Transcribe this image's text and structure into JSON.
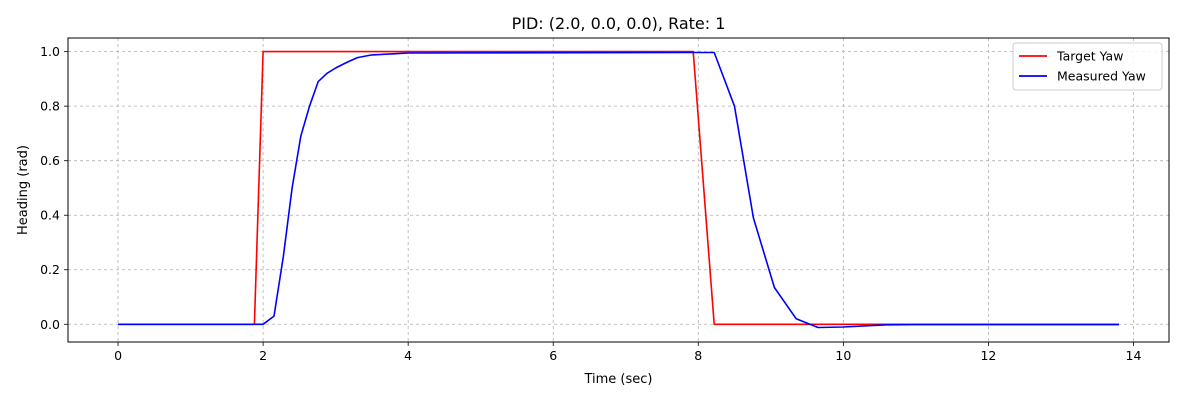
{
  "chart_data": {
    "type": "line",
    "title": "PID: (2.0, 0.0, 0.0), Rate: 1",
    "xlabel": "Time (sec)",
    "ylabel": "Heading (rad)",
    "xlim": [
      -0.69,
      14.49
    ],
    "ylim": [
      -0.065,
      1.05
    ],
    "xticks": [
      0,
      2,
      4,
      6,
      8,
      10,
      12,
      14
    ],
    "yticks": [
      0.0,
      0.2,
      0.4,
      0.6,
      0.8,
      1.0
    ],
    "xtick_labels": [
      "0",
      "2",
      "4",
      "6",
      "8",
      "10",
      "12",
      "14"
    ],
    "ytick_labels": [
      "0.0",
      "0.2",
      "0.4",
      "0.6",
      "0.8",
      "1.0"
    ],
    "grid": true,
    "legend_position": "top-right",
    "series": [
      {
        "name": "Target Yaw",
        "color": "#ff0000",
        "x": [
          0,
          1.88,
          2.0,
          7.93,
          8.22,
          13.8
        ],
        "y": [
          0,
          0,
          1.0,
          1.0,
          0,
          0
        ]
      },
      {
        "name": "Measured Yaw",
        "color": "#0000ff",
        "x": [
          0,
          2.0,
          2.15,
          2.28,
          2.4,
          2.52,
          2.64,
          2.76,
          2.88,
          3.0,
          3.15,
          3.3,
          3.5,
          3.8,
          4.0,
          7.9,
          8.22,
          8.5,
          8.76,
          9.05,
          9.35,
          9.65,
          10.0,
          10.6,
          11.0,
          13.8
        ],
        "y": [
          0,
          0,
          0.03,
          0.25,
          0.5,
          0.69,
          0.8,
          0.89,
          0.92,
          0.94,
          0.96,
          0.978,
          0.988,
          0.992,
          0.995,
          0.997,
          0.997,
          0.8,
          0.39,
          0.135,
          0.02,
          -0.012,
          -0.01,
          -0.002,
          -0.001,
          -0.001
        ]
      }
    ]
  }
}
